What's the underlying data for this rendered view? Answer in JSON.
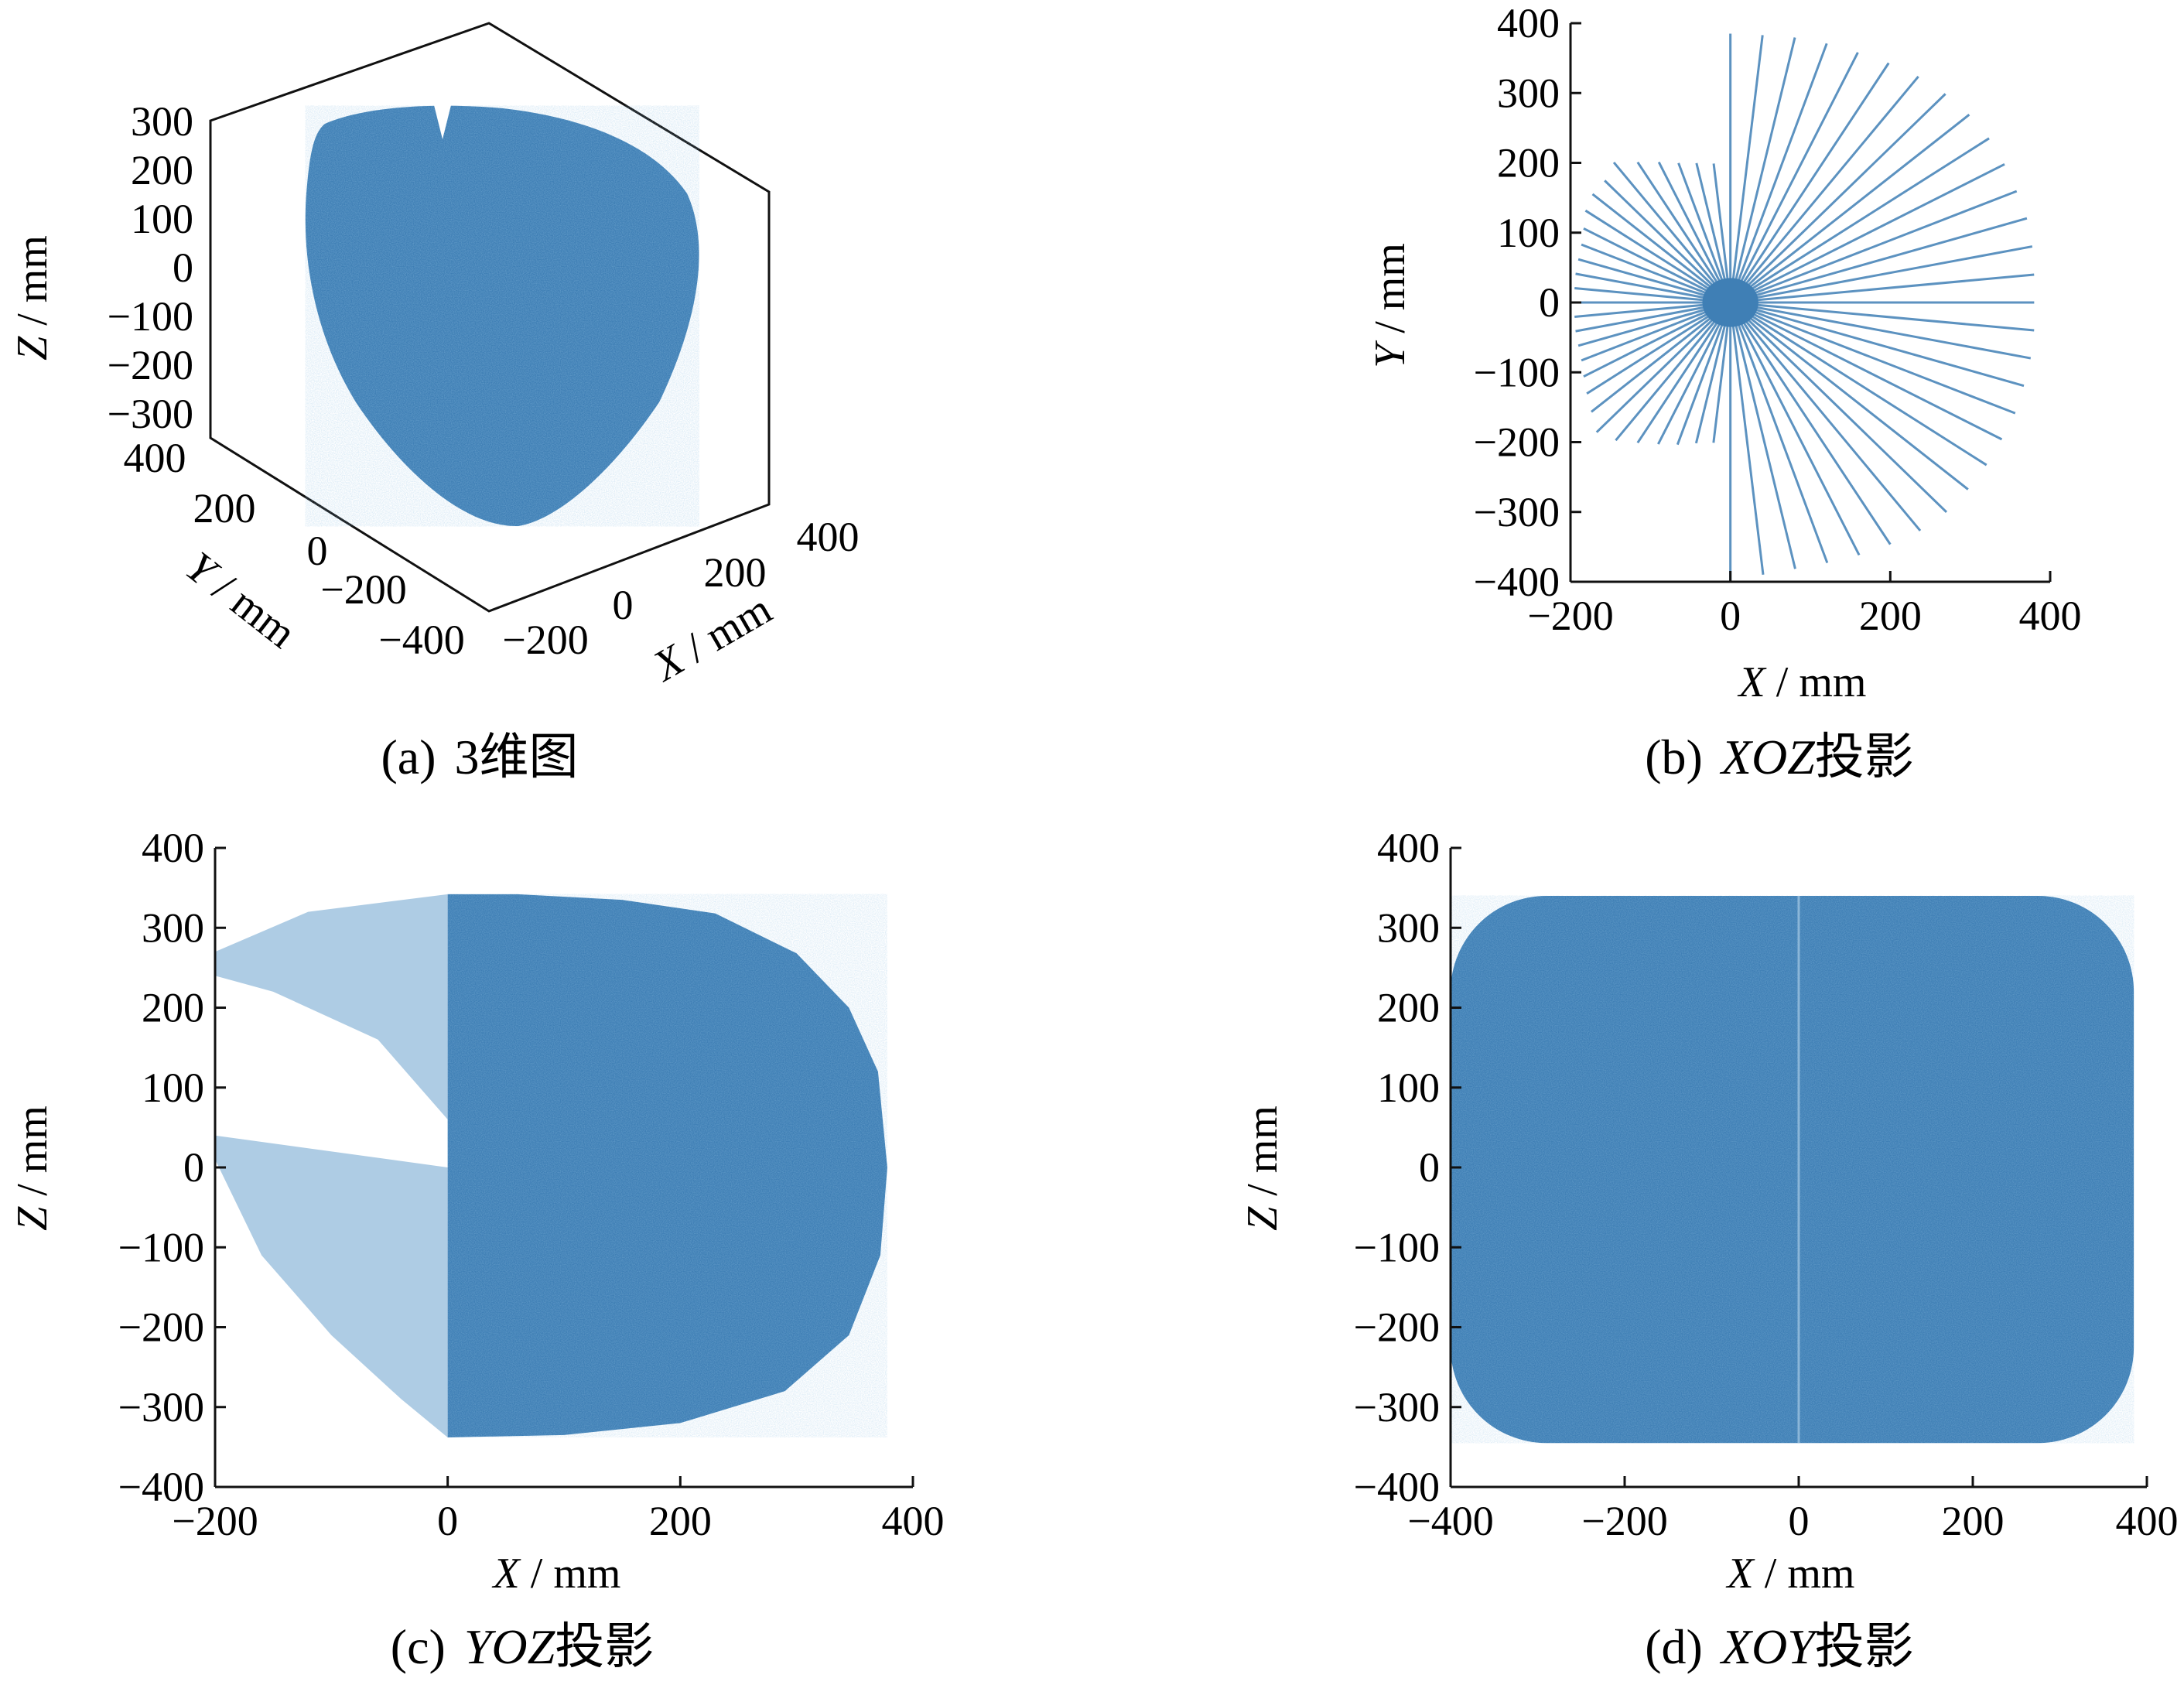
{
  "colors": {
    "point": "#3f7fb5",
    "point_light": "#8bb6d8",
    "axis": "#111111"
  },
  "chart_data": [
    {
      "id": "a",
      "type": "scatter",
      "projection": "3d",
      "caption": {
        "letter": "(a)",
        "text": "3维图"
      },
      "xlabel": {
        "var": "X",
        "unit": " / mm"
      },
      "ylabel": {
        "var": "Y",
        "unit": " / mm"
      },
      "zlabel": {
        "var": "Z",
        "unit": " / mm"
      },
      "x_ticks": [
        -200,
        0,
        200,
        400
      ],
      "y_ticks": [
        -400,
        -200,
        0,
        200,
        400
      ],
      "z_ticks": [
        -300,
        -200,
        -100,
        0,
        100,
        200,
        300
      ],
      "xlim": [
        -200,
        400
      ],
      "ylim": [
        -400,
        400
      ],
      "zlim": [
        -350,
        350
      ],
      "shape": "dense cloud of points filling the scanned volume"
    },
    {
      "id": "b",
      "type": "scatter",
      "caption": {
        "letter": "(b)",
        "var": "XOZ",
        "text": "投影"
      },
      "xlabel": {
        "var": "X",
        "unit": " / mm"
      },
      "ylabel": {
        "var": "Y",
        "unit": " / mm"
      },
      "xlim": [
        -200,
        400
      ],
      "ylim": [
        -400,
        400
      ],
      "x_ticks": [
        -200,
        0,
        200,
        400
      ],
      "y_ticks": [
        -400,
        -300,
        -200,
        -100,
        0,
        100,
        200,
        300,
        400
      ],
      "shape": "radial lines from origin",
      "center": [
        0,
        0
      ],
      "rays": [
        {
          "angle": 0,
          "length": 380
        },
        {
          "angle": 6,
          "length": 382
        },
        {
          "angle": 12,
          "length": 386
        },
        {
          "angle": 18,
          "length": 390
        },
        {
          "angle": 24,
          "length": 392
        },
        {
          "angle": 30,
          "length": 396
        },
        {
          "angle": 36,
          "length": 400
        },
        {
          "angle": 42,
          "length": 402
        },
        {
          "angle": 48,
          "length": 402
        },
        {
          "angle": 54,
          "length": 400
        },
        {
          "angle": 60,
          "length": 396
        },
        {
          "angle": 66,
          "length": 392
        },
        {
          "angle": 72,
          "length": 390
        },
        {
          "angle": 78,
          "length": 388
        },
        {
          "angle": 84,
          "length": 385
        },
        {
          "angle": 90,
          "length": 385
        },
        {
          "angle": 96,
          "length": 200
        },
        {
          "angle": 102,
          "length": 204
        },
        {
          "angle": 108,
          "length": 210
        },
        {
          "angle": 114,
          "length": 220
        },
        {
          "angle": 120,
          "length": 232
        },
        {
          "angle": 126,
          "length": 248
        },
        {
          "angle": 132,
          "length": 235
        },
        {
          "angle": 138,
          "length": 232
        },
        {
          "angle": 144,
          "length": 224
        },
        {
          "angle": 150,
          "length": 212
        },
        {
          "angle": 156,
          "length": 204
        },
        {
          "angle": 162,
          "length": 200
        },
        {
          "angle": 168,
          "length": 198
        },
        {
          "angle": 174,
          "length": 196
        },
        {
          "angle": 180,
          "length": 196
        },
        {
          "angle": 186,
          "length": 196
        },
        {
          "angle": 192,
          "length": 198
        },
        {
          "angle": 198,
          "length": 200
        },
        {
          "angle": 204,
          "length": 204
        },
        {
          "angle": 210,
          "length": 212
        },
        {
          "angle": 216,
          "length": 222
        },
        {
          "angle": 222,
          "length": 234
        },
        {
          "angle": 228,
          "length": 250
        },
        {
          "angle": 234,
          "length": 244
        },
        {
          "angle": 240,
          "length": 232
        },
        {
          "angle": 246,
          "length": 222
        },
        {
          "angle": 252,
          "length": 214
        },
        {
          "angle": 258,
          "length": 206
        },
        {
          "angle": 264,
          "length": 202
        },
        {
          "angle": 270,
          "length": 400
        },
        {
          "angle": 276,
          "length": 392
        },
        {
          "angle": 282,
          "length": 390
        },
        {
          "angle": 288,
          "length": 392
        },
        {
          "angle": 294,
          "length": 396
        },
        {
          "angle": 300,
          "length": 400
        },
        {
          "angle": 306,
          "length": 404
        },
        {
          "angle": 312,
          "length": 404
        },
        {
          "angle": 318,
          "length": 400
        },
        {
          "angle": 324,
          "length": 396
        },
        {
          "angle": 330,
          "length": 392
        },
        {
          "angle": 336,
          "length": 390
        },
        {
          "angle": 342,
          "length": 386
        },
        {
          "angle": 348,
          "length": 384
        },
        {
          "angle": 354,
          "length": 382
        }
      ],
      "hub_radius": 25
    },
    {
      "id": "c",
      "type": "scatter",
      "caption": {
        "letter": "(c)",
        "var": "YOZ",
        "text": "投影"
      },
      "xlabel": {
        "var": "X",
        "unit": " / mm"
      },
      "ylabel": {
        "var": "Z",
        "unit": " / mm"
      },
      "xlim": [
        -200,
        400
      ],
      "ylim": [
        -400,
        400
      ],
      "x_ticks": [
        -200,
        0,
        200,
        400
      ],
      "y_ticks": [
        -400,
        -300,
        -200,
        -100,
        0,
        100,
        200,
        300,
        400
      ],
      "region_dense": [
        [
          0,
          342
        ],
        [
          60,
          342
        ],
        [
          150,
          335
        ],
        [
          230,
          318
        ],
        [
          300,
          268
        ],
        [
          345,
          200
        ],
        [
          370,
          120
        ],
        [
          378,
          0
        ],
        [
          372,
          -110
        ],
        [
          345,
          -210
        ],
        [
          290,
          -280
        ],
        [
          200,
          -320
        ],
        [
          100,
          -335
        ],
        [
          0,
          -338
        ]
      ],
      "region_sparse_top": [
        [
          0,
          342
        ],
        [
          -120,
          320
        ],
        [
          -200,
          270
        ],
        [
          -200,
          240
        ],
        [
          -150,
          220
        ],
        [
          -60,
          160
        ],
        [
          0,
          60
        ]
      ],
      "region_sparse_bottom": [
        [
          0,
          0
        ],
        [
          -200,
          40
        ],
        [
          -200,
          10
        ],
        [
          -160,
          -110
        ],
        [
          -100,
          -210
        ],
        [
          -40,
          -290
        ],
        [
          0,
          -338
        ]
      ]
    },
    {
      "id": "d",
      "type": "scatter",
      "caption": {
        "letter": "(d)",
        "var": "XOY",
        "text": "投影"
      },
      "xlabel": {
        "var": "X",
        "unit": " / mm"
      },
      "ylabel": {
        "var": "Z",
        "unit": " / mm"
      },
      "xlim": [
        -400,
        400
      ],
      "ylim": [
        -400,
        400
      ],
      "x_ticks": [
        -400,
        -200,
        0,
        200,
        400
      ],
      "y_ticks": [
        -400,
        -300,
        -200,
        -100,
        0,
        100,
        200,
        300,
        400
      ],
      "region_dense": {
        "x": [
          -400,
          385
        ],
        "y": [
          -345,
          340
        ],
        "corner": 110
      },
      "center_line_x": 0
    }
  ]
}
